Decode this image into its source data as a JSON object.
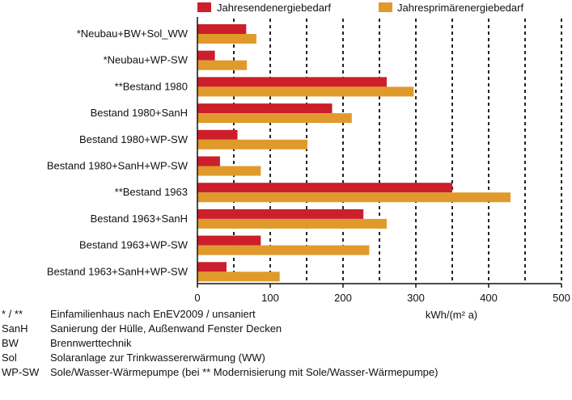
{
  "chart_data": {
    "type": "bar",
    "orientation": "horizontal",
    "categories": [
      "*Neubau+BW+Sol_WW",
      "*Neubau+WP-SW",
      "**Bestand 1980",
      "Bestand 1980+SanH",
      "Bestand 1980+WP-SW",
      "Bestand 1980+SanH+WP-SW",
      "**Bestand 1963",
      "Bestand 1963+SanH",
      "Bestand 1963+WP-SW",
      "Bestand 1963+SanH+WP-SW"
    ],
    "series": [
      {
        "name": "Jahresendenergiebedarf",
        "color": "#cc1f2b",
        "values": [
          67,
          24,
          260,
          185,
          55,
          31,
          350,
          228,
          87,
          40
        ]
      },
      {
        "name": "Jahresprimärenergiebedarf",
        "color": "#e09a2c",
        "values": [
          81,
          68,
          297,
          212,
          151,
          87,
          430,
          260,
          236,
          113
        ]
      }
    ],
    "xlim": [
      0,
      500
    ],
    "xticks": [
      "0",
      "100",
      "200",
      "300",
      "400",
      "500"
    ],
    "xlabel": "kWh/(m² a)",
    "grid": "dashed vertical",
    "legend_position": "top"
  },
  "notes": [
    {
      "key": "* / **",
      "text": "Einfamilienhaus nach EnEV2009  / unsaniert"
    },
    {
      "key": "SanH",
      "text": "Sanierung der Hülle, Außenwand Fenster Decken"
    },
    {
      "key": "BW",
      "text": "Brennwerttechnik"
    },
    {
      "key": "Sol",
      "text": "Solaranlage zur Trinkwassererwärmung (WW)"
    },
    {
      "key": "WP-SW",
      "text": "Sole/Wasser-Wärmepumpe (bei ** Modernisierung mit Sole/Wasser-Wärmepumpe)"
    }
  ]
}
